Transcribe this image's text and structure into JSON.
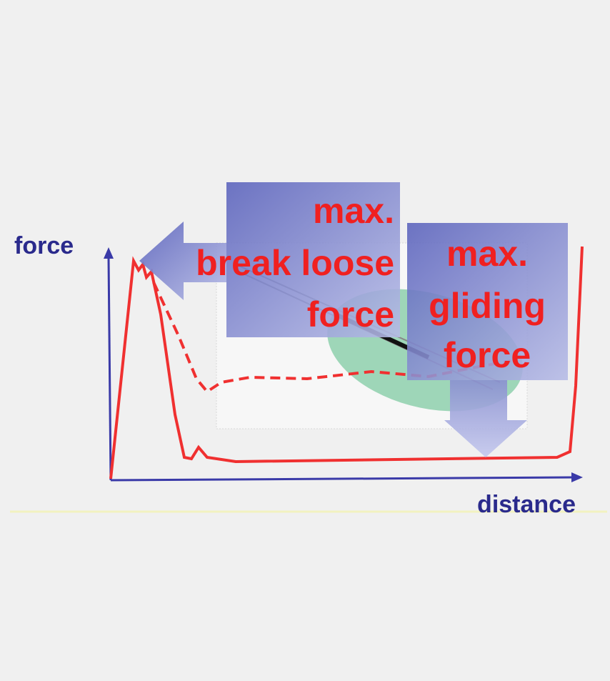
{
  "axes": {
    "y_label": "force",
    "x_label": "distance"
  },
  "annotations": [
    {
      "lines": [
        "max.",
        "break loose",
        "force"
      ]
    },
    {
      "lines": [
        "max.",
        "gliding",
        "force"
      ]
    }
  ]
}
